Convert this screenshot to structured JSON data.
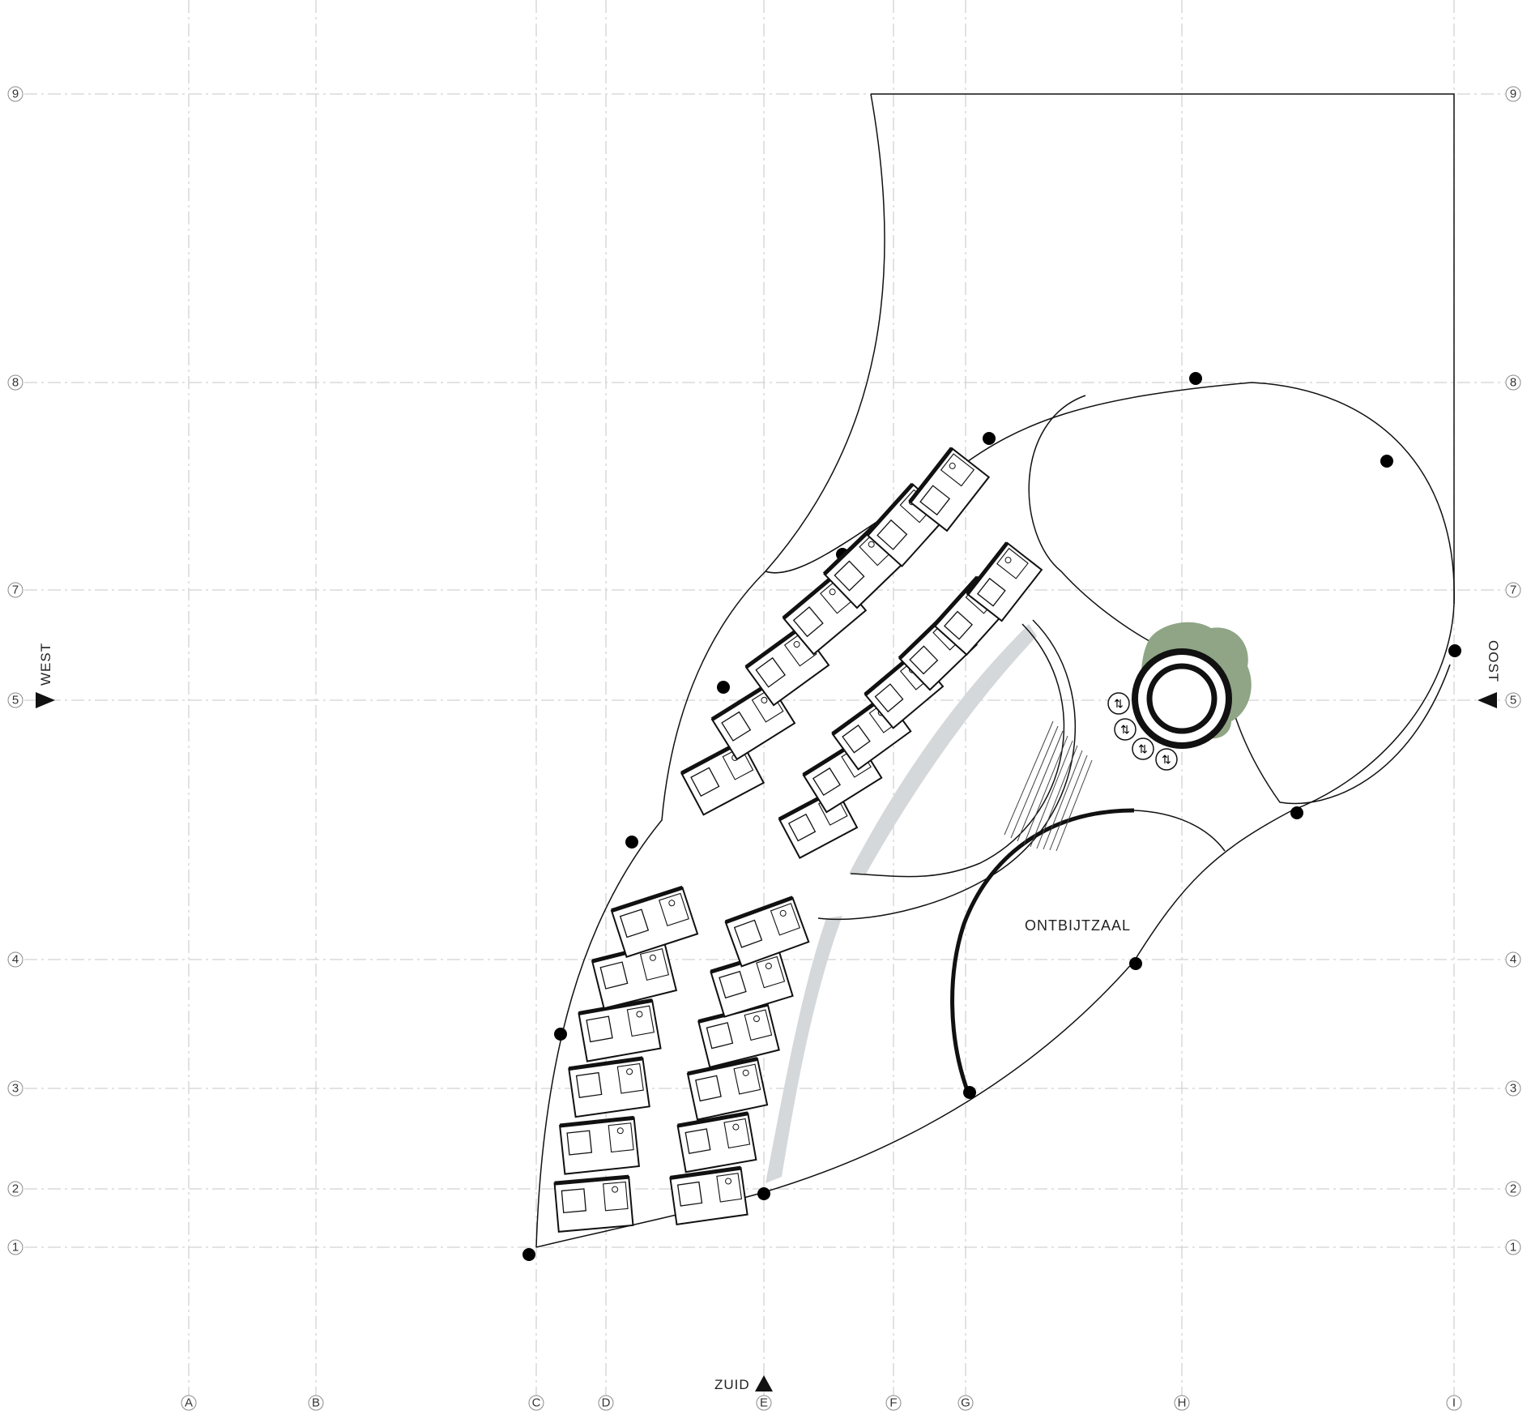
{
  "grid": {
    "columns": [
      "A",
      "B",
      "C",
      "D",
      "E",
      "F",
      "G",
      "H",
      "I"
    ],
    "rows": [
      "9",
      "8",
      "7",
      "5",
      "4",
      "3",
      "2",
      "1"
    ]
  },
  "directions": {
    "west": "WEST",
    "east": "OOST",
    "south": "ZUID"
  },
  "rooms": {
    "breakfast_room": "ONTBIJTZAAL"
  },
  "colors": {
    "line": "#111111",
    "grid": "#d2d2d2",
    "tree": "#8fa585",
    "shade": "#d5d8da"
  },
  "icons": {
    "elevator": "up-down-arrows-icon",
    "column": "filled-circle",
    "north_marker": "triangle-icon"
  }
}
